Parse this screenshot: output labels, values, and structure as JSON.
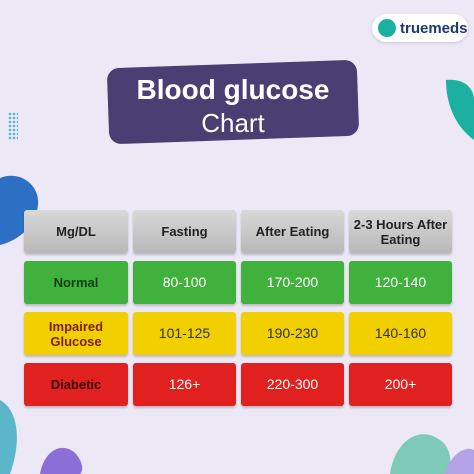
{
  "logo": "truemeds",
  "header": {
    "title": "Blood glucose",
    "subtitle": "Chart"
  },
  "table": {
    "columns": [
      "Mg/DL",
      "Fasting",
      "After Eating",
      "2-3 Hours After Eating"
    ],
    "rows": [
      [
        "Normal",
        "80-100",
        "170-200",
        "120-140"
      ],
      [
        "Impaired Glucose",
        "101-125",
        "190-230",
        "140-160"
      ],
      [
        "Diabetic",
        "126+",
        "220-300",
        "200+"
      ]
    ]
  }
}
